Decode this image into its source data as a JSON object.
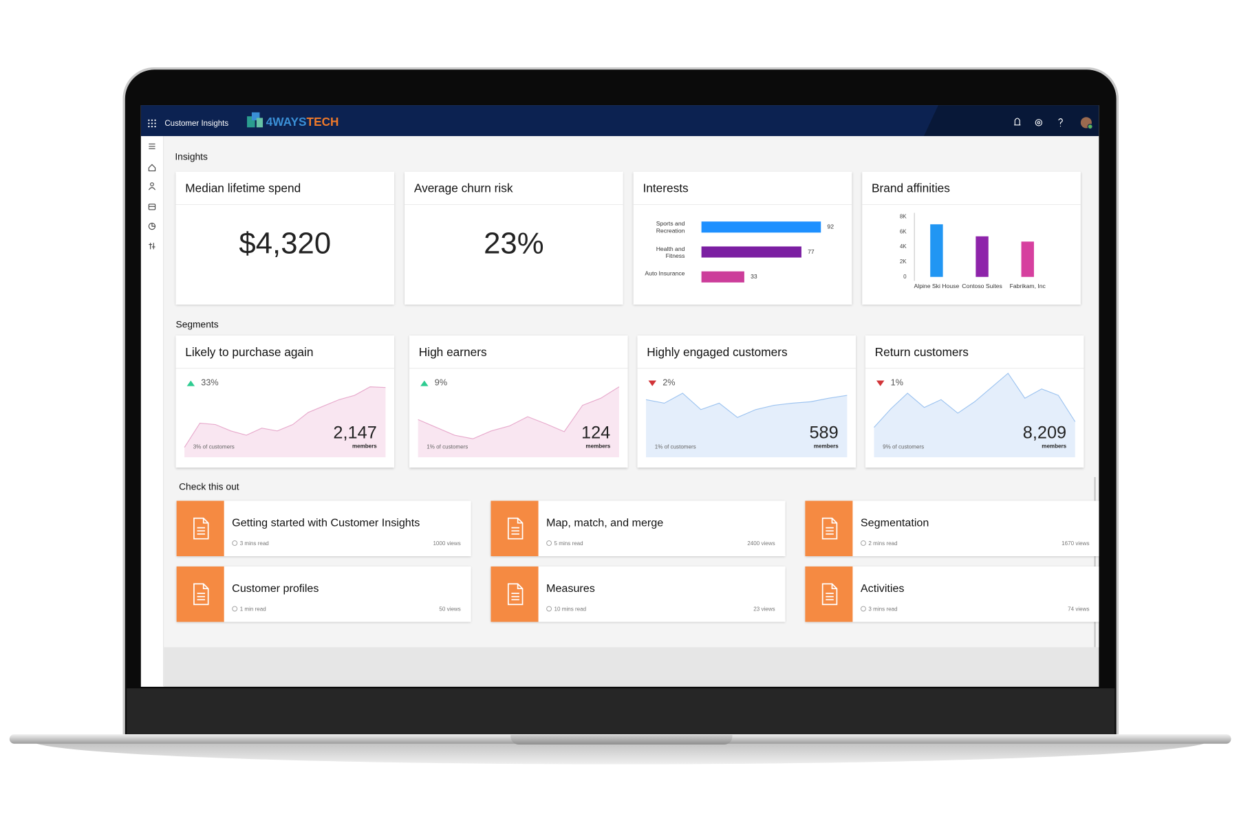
{
  "header": {
    "app_name": "Customer Insights",
    "logo": [
      "4WAYS",
      "TECH"
    ]
  },
  "insights": {
    "title": "Insights",
    "metrics": [
      {
        "title": "Median lifetime spend",
        "value": "$4,320"
      },
      {
        "title": "Average churn risk",
        "value": "23%"
      }
    ],
    "interests": {
      "type": "bar",
      "title": "Interests",
      "categories": [
        "Sports and Recreation",
        "Health and Fitness",
        "Auto Insurance"
      ],
      "values": [
        92,
        77,
        33
      ],
      "colors": [
        "#1e90ff",
        "#7b1fa2",
        "#cc3d9a"
      ]
    },
    "brand_affinities": {
      "type": "bar",
      "title": "Brand affinities",
      "categories": [
        "Alpine Ski House",
        "Contoso Suites",
        "Fabrikam, Inc"
      ],
      "values": [
        7000,
        5400,
        4700
      ],
      "colors": [
        "#2196f3",
        "#8e24aa",
        "#d6409f"
      ],
      "ylim": [
        0,
        8000
      ],
      "yticks": [
        0,
        {
          "value": 2000,
          "label": "2K"
        },
        {
          "value": 4000,
          "label": "4K"
        },
        {
          "value": 6000,
          "label": "6K"
        },
        {
          "value": 8000,
          "label": "8K"
        }
      ]
    }
  },
  "segments": {
    "title": "Segments",
    "ylim": [
      0,
      120
    ],
    "cards": [
      {
        "title": "Likely to purchase again",
        "change": "33%",
        "trend": "up",
        "value": "2,147",
        "unit": "members",
        "share": "3% of customers",
        "fill": "#f9e6f1",
        "color": "#e7a9cc",
        "values": [
          14,
          48,
          46,
          37,
          31,
          41,
          37,
          46,
          63,
          72,
          81,
          87,
          99,
          98
        ]
      },
      {
        "title": "High earners",
        "change": "9%",
        "trend": "up",
        "value": "124",
        "unit": "members",
        "share": "1% of customers",
        "fill": "#f9e6f1",
        "color": "#e7a9cc",
        "values": [
          53,
          42,
          31,
          26,
          37,
          44,
          57,
          47,
          36,
          73,
          83,
          99
        ]
      },
      {
        "title": "Highly engaged customers",
        "change": "2%",
        "trend": "down",
        "value": "589",
        "unit": "members",
        "share": "1% of customers",
        "fill": "#e4eefb",
        "color": "#9cc3f0",
        "values": [
          81,
          76,
          90,
          67,
          76,
          56,
          67,
          73,
          76,
          78,
          83,
          87
        ]
      },
      {
        "title": "Return customers",
        "change": "1%",
        "trend": "down",
        "value": "8,209",
        "unit": "members",
        "share": "9% of customers",
        "fill": "#e4eefb",
        "color": "#9cc3f0",
        "values": [
          42,
          68,
          90,
          70,
          81,
          62,
          78,
          98,
          118,
          83,
          96,
          87,
          50
        ]
      }
    ]
  },
  "check": {
    "title": "Check this out",
    "items": [
      {
        "title": "Getting started with Customer Insights",
        "read": "3 mins read",
        "views": "1000 views"
      },
      {
        "title": "Map, match, and merge",
        "read": "5 mins read",
        "views": "2400 views"
      },
      {
        "title": "Segmentation",
        "read": "2 mins read",
        "views": "1670 views"
      },
      {
        "title": "Customer profiles",
        "read": "1 min read",
        "views": "50 views"
      },
      {
        "title": "Measures",
        "read": "10 mins read",
        "views": "23 views"
      },
      {
        "title": "Activities",
        "read": "3 mins read",
        "views": "74 views"
      }
    ]
  }
}
